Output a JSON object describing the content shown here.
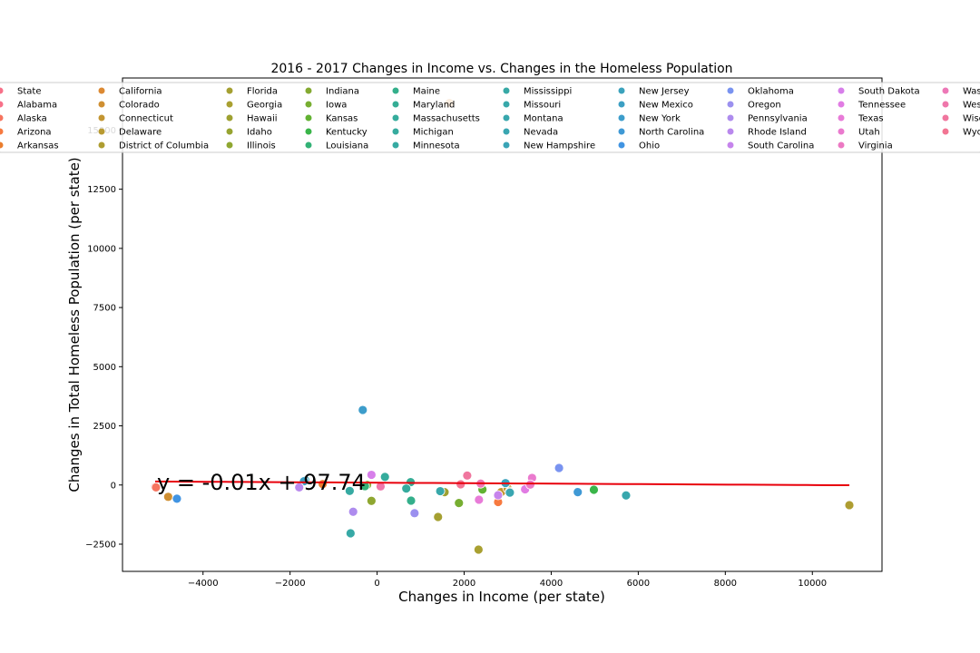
{
  "chart_data": {
    "type": "scatter",
    "title": "2016 - 2017 Changes in Income vs. Changes in the Homeless Population",
    "xlabel": "Changes in Income (per state)",
    "ylabel": "Changes in Total Homeless Population (per state)",
    "xlim": [
      -5850,
      11600
    ],
    "ylim": [
      -3650,
      17200
    ],
    "x_ticks": [
      -4000,
      -2000,
      0,
      2000,
      4000,
      6000,
      8000,
      10000
    ],
    "x_tick_labels": [
      "−4000",
      "−2000",
      "0",
      "2000",
      "4000",
      "6000",
      "8000",
      "10000"
    ],
    "y_ticks": [
      -2500,
      0,
      2500,
      5000,
      7500,
      10000,
      12500,
      15000
    ],
    "y_tick_labels": [
      "−2500",
      "0",
      "2500",
      "5000",
      "7500",
      "10000",
      "12500",
      "15000"
    ],
    "annotation": "y = -0.01x + 97.74",
    "legend_placement": "top",
    "legend_title": "State",
    "regression": {
      "slope": -0.01,
      "intercept": 97.74,
      "color": "#e8000b"
    },
    "points": [
      {
        "state": "Alabama",
        "x": -5100,
        "y": -80,
        "color": "#f77189"
      },
      {
        "state": "Alaska",
        "x": -5080,
        "y": -100,
        "color": "#f6745f"
      },
      {
        "state": "Arizona",
        "x": 2780,
        "y": -720,
        "color": "#f77a40"
      },
      {
        "state": "Arkansas",
        "x": -1250,
        "y": 40,
        "color": "#ea7d2e"
      },
      {
        "state": "California",
        "x": 1660,
        "y": 16140,
        "color": "#dc8932"
      },
      {
        "state": "Colorado",
        "x": -4800,
        "y": -500,
        "color": "#cf8f32"
      },
      {
        "state": "Connecticut",
        "x": 2850,
        "y": -300,
        "color": "#c39532"
      },
      {
        "state": "Delaware",
        "x": 3000,
        "y": -150,
        "color": "#b89a32"
      },
      {
        "state": "District of Columbia",
        "x": 10850,
        "y": -850,
        "color": "#ae9d31"
      },
      {
        "state": "Florida",
        "x": 1400,
        "y": -1350,
        "color": "#a5a031"
      },
      {
        "state": "Georgia",
        "x": 2330,
        "y": -2730,
        "color": "#a9a031"
      },
      {
        "state": "Hawaii",
        "x": 1550,
        "y": -300,
        "color": "#9ea131"
      },
      {
        "state": "Idaho",
        "x": 3050,
        "y": -280,
        "color": "#97a431"
      },
      {
        "state": "Illinois",
        "x": -130,
        "y": -670,
        "color": "#8fa731"
      },
      {
        "state": "Indiana",
        "x": -230,
        "y": 0,
        "color": "#84aa31"
      },
      {
        "state": "Iowa",
        "x": 1880,
        "y": -760,
        "color": "#77ae31"
      },
      {
        "state": "Kansas",
        "x": 2420,
        "y": -190,
        "color": "#62b232"
      },
      {
        "state": "Kentucky",
        "x": 4980,
        "y": -200,
        "color": "#3ab549"
      },
      {
        "state": "Louisiana",
        "x": -280,
        "y": -50,
        "color": "#33b276"
      },
      {
        "state": "Maine",
        "x": 780,
        "y": -660,
        "color": "#34af8b"
      },
      {
        "state": "Maryland",
        "x": 770,
        "y": 120,
        "color": "#35ad95"
      },
      {
        "state": "Massachusetts",
        "x": 180,
        "y": 340,
        "color": "#35ac9c"
      },
      {
        "state": "Michigan",
        "x": 670,
        "y": -150,
        "color": "#36ab9e"
      },
      {
        "state": "Minnesota",
        "x": -630,
        "y": -250,
        "color": "#36aaa2"
      },
      {
        "state": "Mississippi",
        "x": -610,
        "y": -2040,
        "color": "#37a9a6"
      },
      {
        "state": "Missouri",
        "x": 1450,
        "y": -260,
        "color": "#38a8aa"
      },
      {
        "state": "Montana",
        "x": 5720,
        "y": -440,
        "color": "#38a7ad"
      },
      {
        "state": "Nevada",
        "x": 3050,
        "y": -320,
        "color": "#39a6b1"
      },
      {
        "state": "New Hampshire",
        "x": -1650,
        "y": 200,
        "color": "#3aa4b6"
      },
      {
        "state": "New Jersey",
        "x": 2950,
        "y": 80,
        "color": "#3ba2bc"
      },
      {
        "state": "New Mexico",
        "x": -1680,
        "y": 160,
        "color": "#3c9fc3"
      },
      {
        "state": "New York",
        "x": -330,
        "y": 3170,
        "color": "#3d9dcb"
      },
      {
        "state": "North Carolina",
        "x": 4610,
        "y": -300,
        "color": "#3f99d5"
      },
      {
        "state": "Ohio",
        "x": -4600,
        "y": -580,
        "color": "#4194e2"
      },
      {
        "state": "Oklahoma",
        "x": 4180,
        "y": 720,
        "color": "#7993f0"
      },
      {
        "state": "Oregon",
        "x": 860,
        "y": -1190,
        "color": "#9b90ef"
      },
      {
        "state": "Pennsylvania",
        "x": -550,
        "y": -1130,
        "color": "#ae8cee"
      },
      {
        "state": "Rhode Island",
        "x": -1790,
        "y": -100,
        "color": "#b988ed"
      },
      {
        "state": "South Carolina",
        "x": 2780,
        "y": -430,
        "color": "#c684ec"
      },
      {
        "state": "South Dakota",
        "x": -130,
        "y": 430,
        "color": "#d77fea"
      },
      {
        "state": "Tennessee",
        "x": 3400,
        "y": -180,
        "color": "#e17ce3"
      },
      {
        "state": "Texas",
        "x": 2340,
        "y": -620,
        "color": "#e87bd8"
      },
      {
        "state": "Utah",
        "x": 3560,
        "y": 300,
        "color": "#ea7ace"
      },
      {
        "state": "Virginia",
        "x": 3520,
        "y": 20,
        "color": "#ec79c3"
      },
      {
        "state": "Washington",
        "x": 2380,
        "y": 60,
        "color": "#ed78b7"
      },
      {
        "state": "West Virginia",
        "x": 80,
        "y": -60,
        "color": "#ef77ab"
      },
      {
        "state": "Wisconsin",
        "x": 2070,
        "y": 400,
        "color": "#f0769e"
      },
      {
        "state": "Wyoming",
        "x": 1920,
        "y": 30,
        "color": "#f27593"
      }
    ],
    "legend": [
      {
        "label": "State",
        "color": "#f77189"
      },
      {
        "label": "Alabama",
        "color": "#f77189"
      },
      {
        "label": "Alaska",
        "color": "#f6745f"
      },
      {
        "label": "Arizona",
        "color": "#f77a40"
      },
      {
        "label": "Arkansas",
        "color": "#ea7d2e"
      },
      {
        "label": "California",
        "color": "#dc8932"
      },
      {
        "label": "Colorado",
        "color": "#cf8f32"
      },
      {
        "label": "Connecticut",
        "color": "#c39532"
      },
      {
        "label": "Delaware",
        "color": "#b89a32"
      },
      {
        "label": "District of Columbia",
        "color": "#ae9d31"
      },
      {
        "label": "Florida",
        "color": "#a5a031"
      },
      {
        "label": "Georgia",
        "color": "#a9a031"
      },
      {
        "label": "Hawaii",
        "color": "#9ea131"
      },
      {
        "label": "Idaho",
        "color": "#97a431"
      },
      {
        "label": "Illinois",
        "color": "#8fa731"
      },
      {
        "label": "Indiana",
        "color": "#84aa31"
      },
      {
        "label": "Iowa",
        "color": "#77ae31"
      },
      {
        "label": "Kansas",
        "color": "#62b232"
      },
      {
        "label": "Kentucky",
        "color": "#3ab549"
      },
      {
        "label": "Louisiana",
        "color": "#33b276"
      },
      {
        "label": "Maine",
        "color": "#34af8b"
      },
      {
        "label": "Maryland",
        "color": "#35ad95"
      },
      {
        "label": "Massachusetts",
        "color": "#35ac9c"
      },
      {
        "label": "Michigan",
        "color": "#36ab9e"
      },
      {
        "label": "Minnesota",
        "color": "#36aaa2"
      },
      {
        "label": "Mississippi",
        "color": "#37a9a6"
      },
      {
        "label": "Missouri",
        "color": "#38a8aa"
      },
      {
        "label": "Montana",
        "color": "#38a7ad"
      },
      {
        "label": "Nevada",
        "color": "#39a6b1"
      },
      {
        "label": "New Hampshire",
        "color": "#3aa4b6"
      },
      {
        "label": "New Jersey",
        "color": "#3ba2bc"
      },
      {
        "label": "New Mexico",
        "color": "#3c9fc3"
      },
      {
        "label": "New York",
        "color": "#3d9dcb"
      },
      {
        "label": "North Carolina",
        "color": "#3f99d5"
      },
      {
        "label": "Ohio",
        "color": "#4194e2"
      },
      {
        "label": "Oklahoma",
        "color": "#7993f0"
      },
      {
        "label": "Oregon",
        "color": "#9b90ef"
      },
      {
        "label": "Pennsylvania",
        "color": "#ae8cee"
      },
      {
        "label": "Rhode Island",
        "color": "#b988ed"
      },
      {
        "label": "South Carolina",
        "color": "#c684ec"
      },
      {
        "label": "South Dakota",
        "color": "#d77fea"
      },
      {
        "label": "Tennessee",
        "color": "#e17ce3"
      },
      {
        "label": "Texas",
        "color": "#e87bd8"
      },
      {
        "label": "Utah",
        "color": "#ea7ace"
      },
      {
        "label": "Virginia",
        "color": "#ec79c3"
      },
      {
        "label": "Washi",
        "color": "#ed78b7"
      },
      {
        "label": "West V",
        "color": "#ef77ab"
      },
      {
        "label": "Wisco",
        "color": "#f0769e"
      },
      {
        "label": "Wyom",
        "color": "#f27593"
      }
    ]
  }
}
